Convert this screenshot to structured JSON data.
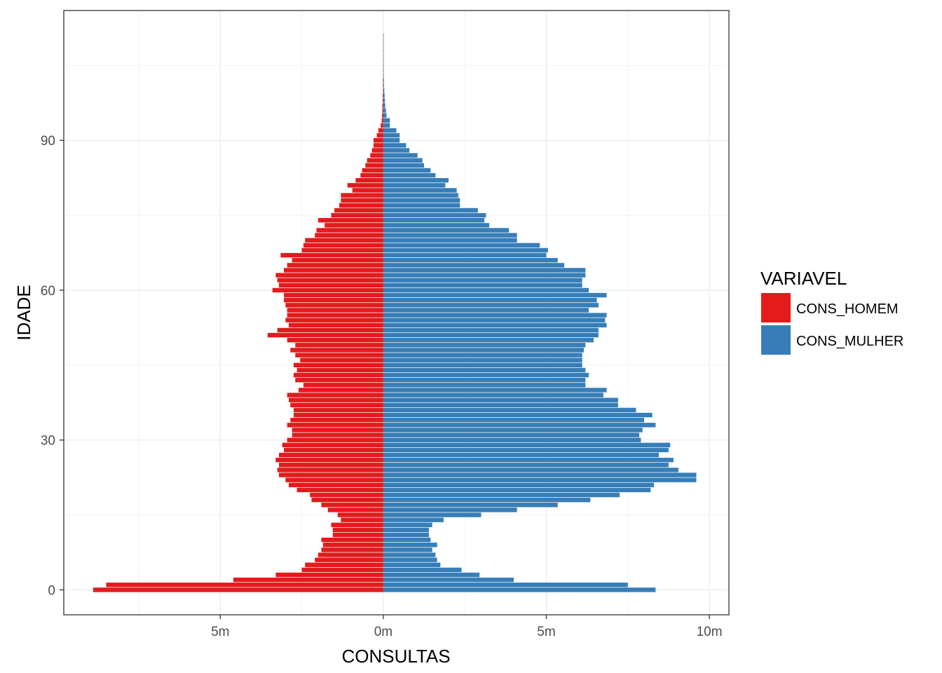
{
  "chart_data": {
    "type": "bar",
    "orientation": "horizontal",
    "xlabel": "CONSULTAS",
    "ylabel": "IDADE",
    "xlim": [
      -9.8,
      10.6
    ],
    "ylim": [
      -5,
      116
    ],
    "x_ticks": [
      {
        "value": -5,
        "label": "5m"
      },
      {
        "value": 0,
        "label": "0m"
      },
      {
        "value": 5,
        "label": "5m"
      },
      {
        "value": 10,
        "label": "10m"
      }
    ],
    "y_ticks": [
      {
        "value": 0,
        "label": "0"
      },
      {
        "value": 30,
        "label": "30"
      },
      {
        "value": 60,
        "label": "60"
      },
      {
        "value": 90,
        "label": "90"
      }
    ],
    "grid": true,
    "legend": {
      "title": "VARIAVEL",
      "position": "right"
    },
    "ages": [
      0,
      1,
      2,
      3,
      4,
      5,
      6,
      7,
      8,
      9,
      10,
      11,
      12,
      13,
      14,
      15,
      16,
      17,
      18,
      19,
      20,
      21,
      22,
      23,
      24,
      25,
      26,
      27,
      28,
      29,
      30,
      31,
      32,
      33,
      34,
      35,
      36,
      37,
      38,
      39,
      40,
      41,
      42,
      43,
      44,
      45,
      46,
      47,
      48,
      49,
      50,
      51,
      52,
      53,
      54,
      55,
      56,
      57,
      58,
      59,
      60,
      61,
      62,
      63,
      64,
      65,
      66,
      67,
      68,
      69,
      70,
      71,
      72,
      73,
      74,
      75,
      76,
      77,
      78,
      79,
      80,
      81,
      82,
      83,
      84,
      85,
      86,
      87,
      88,
      89,
      90,
      91,
      92,
      93,
      94,
      95,
      96,
      97,
      98,
      99,
      100,
      101,
      102,
      103,
      104,
      105,
      106,
      107,
      108,
      109,
      110,
      111
    ],
    "series": [
      {
        "name": "CONS_HOMEM",
        "color": "#E41A1C",
        "values": [
          -8.9,
          -8.5,
          -4.6,
          -3.3,
          -2.5,
          -2.4,
          -2.1,
          -2.0,
          -1.9,
          -1.85,
          -1.9,
          -1.55,
          -1.55,
          -1.6,
          -1.3,
          -1.4,
          -1.7,
          -1.9,
          -2.2,
          -2.25,
          -2.65,
          -2.9,
          -3.0,
          -3.2,
          -3.25,
          -3.2,
          -3.3,
          -3.2,
          -3.05,
          -3.1,
          -2.95,
          -2.8,
          -2.8,
          -2.95,
          -2.85,
          -2.75,
          -2.75,
          -2.85,
          -2.9,
          -2.95,
          -2.6,
          -2.45,
          -2.7,
          -2.75,
          -2.65,
          -2.75,
          -2.55,
          -2.7,
          -2.85,
          -2.7,
          -2.95,
          -3.55,
          -3.25,
          -2.9,
          -3.0,
          -2.95,
          -2.95,
          -3.0,
          -3.05,
          -3.05,
          -3.4,
          -3.2,
          -3.25,
          -3.3,
          -3.05,
          -2.95,
          -2.8,
          -3.15,
          -2.5,
          -2.45,
          -2.4,
          -2.1,
          -2.05,
          -1.8,
          -2.0,
          -1.6,
          -1.5,
          -1.35,
          -1.3,
          -1.3,
          -0.95,
          -1.1,
          -0.85,
          -0.7,
          -0.65,
          -0.55,
          -0.5,
          -0.4,
          -0.35,
          -0.3,
          -0.3,
          -0.2,
          -0.15,
          -0.08,
          -0.05,
          -0.04,
          -0.03,
          -0.03,
          -0.02,
          -0.02,
          -0.01,
          -0.01,
          -0.01,
          -0.005,
          -0.005,
          -0.003,
          -0.003,
          -0.002,
          -0.002,
          -0.001,
          -0.001,
          -0.001
        ]
      },
      {
        "name": "CONS_MULHER",
        "color": "#377EB8",
        "values": [
          8.35,
          7.5,
          4.0,
          2.95,
          2.4,
          1.75,
          1.65,
          1.6,
          1.5,
          1.65,
          1.45,
          1.4,
          1.4,
          1.5,
          1.85,
          3.0,
          4.1,
          5.35,
          6.35,
          7.25,
          8.2,
          8.3,
          9.6,
          9.6,
          9.05,
          8.75,
          8.9,
          8.45,
          8.75,
          8.8,
          7.9,
          7.85,
          7.95,
          8.35,
          8.0,
          8.25,
          7.75,
          7.2,
          7.2,
          6.75,
          6.85,
          6.2,
          6.2,
          6.3,
          6.2,
          6.1,
          6.1,
          6.1,
          6.15,
          6.2,
          6.45,
          6.6,
          6.6,
          6.85,
          6.8,
          6.85,
          6.3,
          6.6,
          6.55,
          6.85,
          6.3,
          6.1,
          6.1,
          6.2,
          6.2,
          5.55,
          5.35,
          5.0,
          5.05,
          4.8,
          4.1,
          4.1,
          3.85,
          3.25,
          3.1,
          3.15,
          2.9,
          2.35,
          2.35,
          2.3,
          2.25,
          1.9,
          2.0,
          1.6,
          1.45,
          1.25,
          1.2,
          1.05,
          0.8,
          0.7,
          0.5,
          0.5,
          0.4,
          0.2,
          0.2,
          0.1,
          0.08,
          0.06,
          0.05,
          0.04,
          0.03,
          0.02,
          0.02,
          0.01,
          0.01,
          0.01,
          0.005,
          0.005,
          0.003,
          0.003,
          0.002,
          0.002
        ]
      }
    ]
  }
}
